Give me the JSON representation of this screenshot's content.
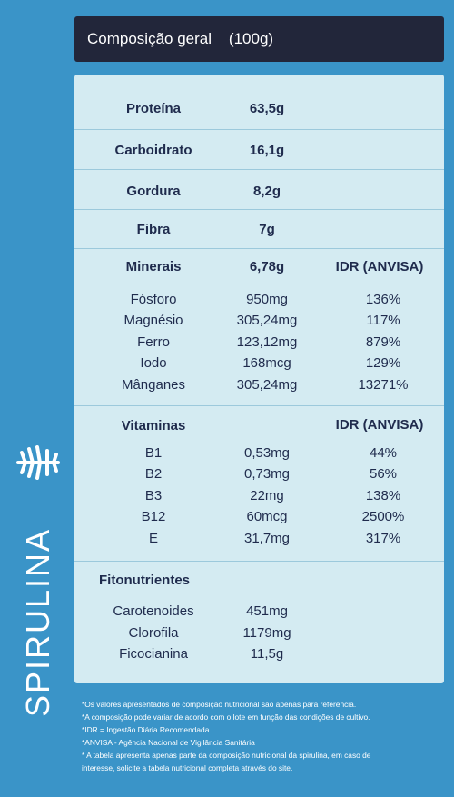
{
  "header": {
    "title": "Composição geral",
    "amount": "(100g)"
  },
  "brand": {
    "name": "SPIRULINA"
  },
  "macros": [
    {
      "label": "Proteína",
      "value": "63,5g"
    },
    {
      "label": "Carboidrato",
      "value": "16,1g"
    },
    {
      "label": "Gordura",
      "value": "8,2g"
    },
    {
      "label": "Fibra",
      "value": "7g"
    }
  ],
  "minerals": {
    "label": "Minerais",
    "total": "6,78g",
    "idr_header": "IDR (ANVISA)",
    "items": [
      {
        "name": "Fósforo",
        "amount": "950mg",
        "idr": "136%"
      },
      {
        "name": "Magnésio",
        "amount": "305,24mg",
        "idr": "117%"
      },
      {
        "name": "Ferro",
        "amount": "123,12mg",
        "idr": "879%"
      },
      {
        "name": "Iodo",
        "amount": "168mcg",
        "idr": "129%"
      },
      {
        "name": "Mânganes",
        "amount": "305,24mg",
        "idr": "13271%"
      }
    ]
  },
  "vitamins": {
    "label": "Vitaminas",
    "idr_header": "IDR (ANVISA)",
    "items": [
      {
        "name": "B1",
        "amount": "0,53mg",
        "idr": "44%"
      },
      {
        "name": "B2",
        "amount": "0,73mg",
        "idr": "56%"
      },
      {
        "name": "B3",
        "amount": "22mg",
        "idr": "138%"
      },
      {
        "name": "B12",
        "amount": "60mcg",
        "idr": "2500%"
      },
      {
        "name": "E",
        "amount": "31,7mg",
        "idr": "317%"
      }
    ]
  },
  "phyto": {
    "label": "Fitonutrientes",
    "items": [
      {
        "name": "Carotenoides",
        "amount": "451mg"
      },
      {
        "name": "Clorofila",
        "amount": "1179mg"
      },
      {
        "name": "Ficocianina",
        "amount": "11,5g"
      }
    ]
  },
  "footnotes": [
    "*Os valores apresentados de composição nutricional são apenas para referência.",
    "*A composição pode variar de acordo com o lote em função das condições de cultivo.",
    "*IDR = Ingestão Diária Recomendada",
    "*ANVISA - Agência Nacional de Vigilância Sanitária",
    "* A tabela apresenta apenas parte da composição nutricional da spirulina, em caso de",
    "interesse, solicite a tabela nutricional completa através do site."
  ],
  "colors": {
    "background": "#3a94c8",
    "header": "#22263a",
    "panel": "#d4ebf2",
    "text": "#1f2b4d"
  }
}
